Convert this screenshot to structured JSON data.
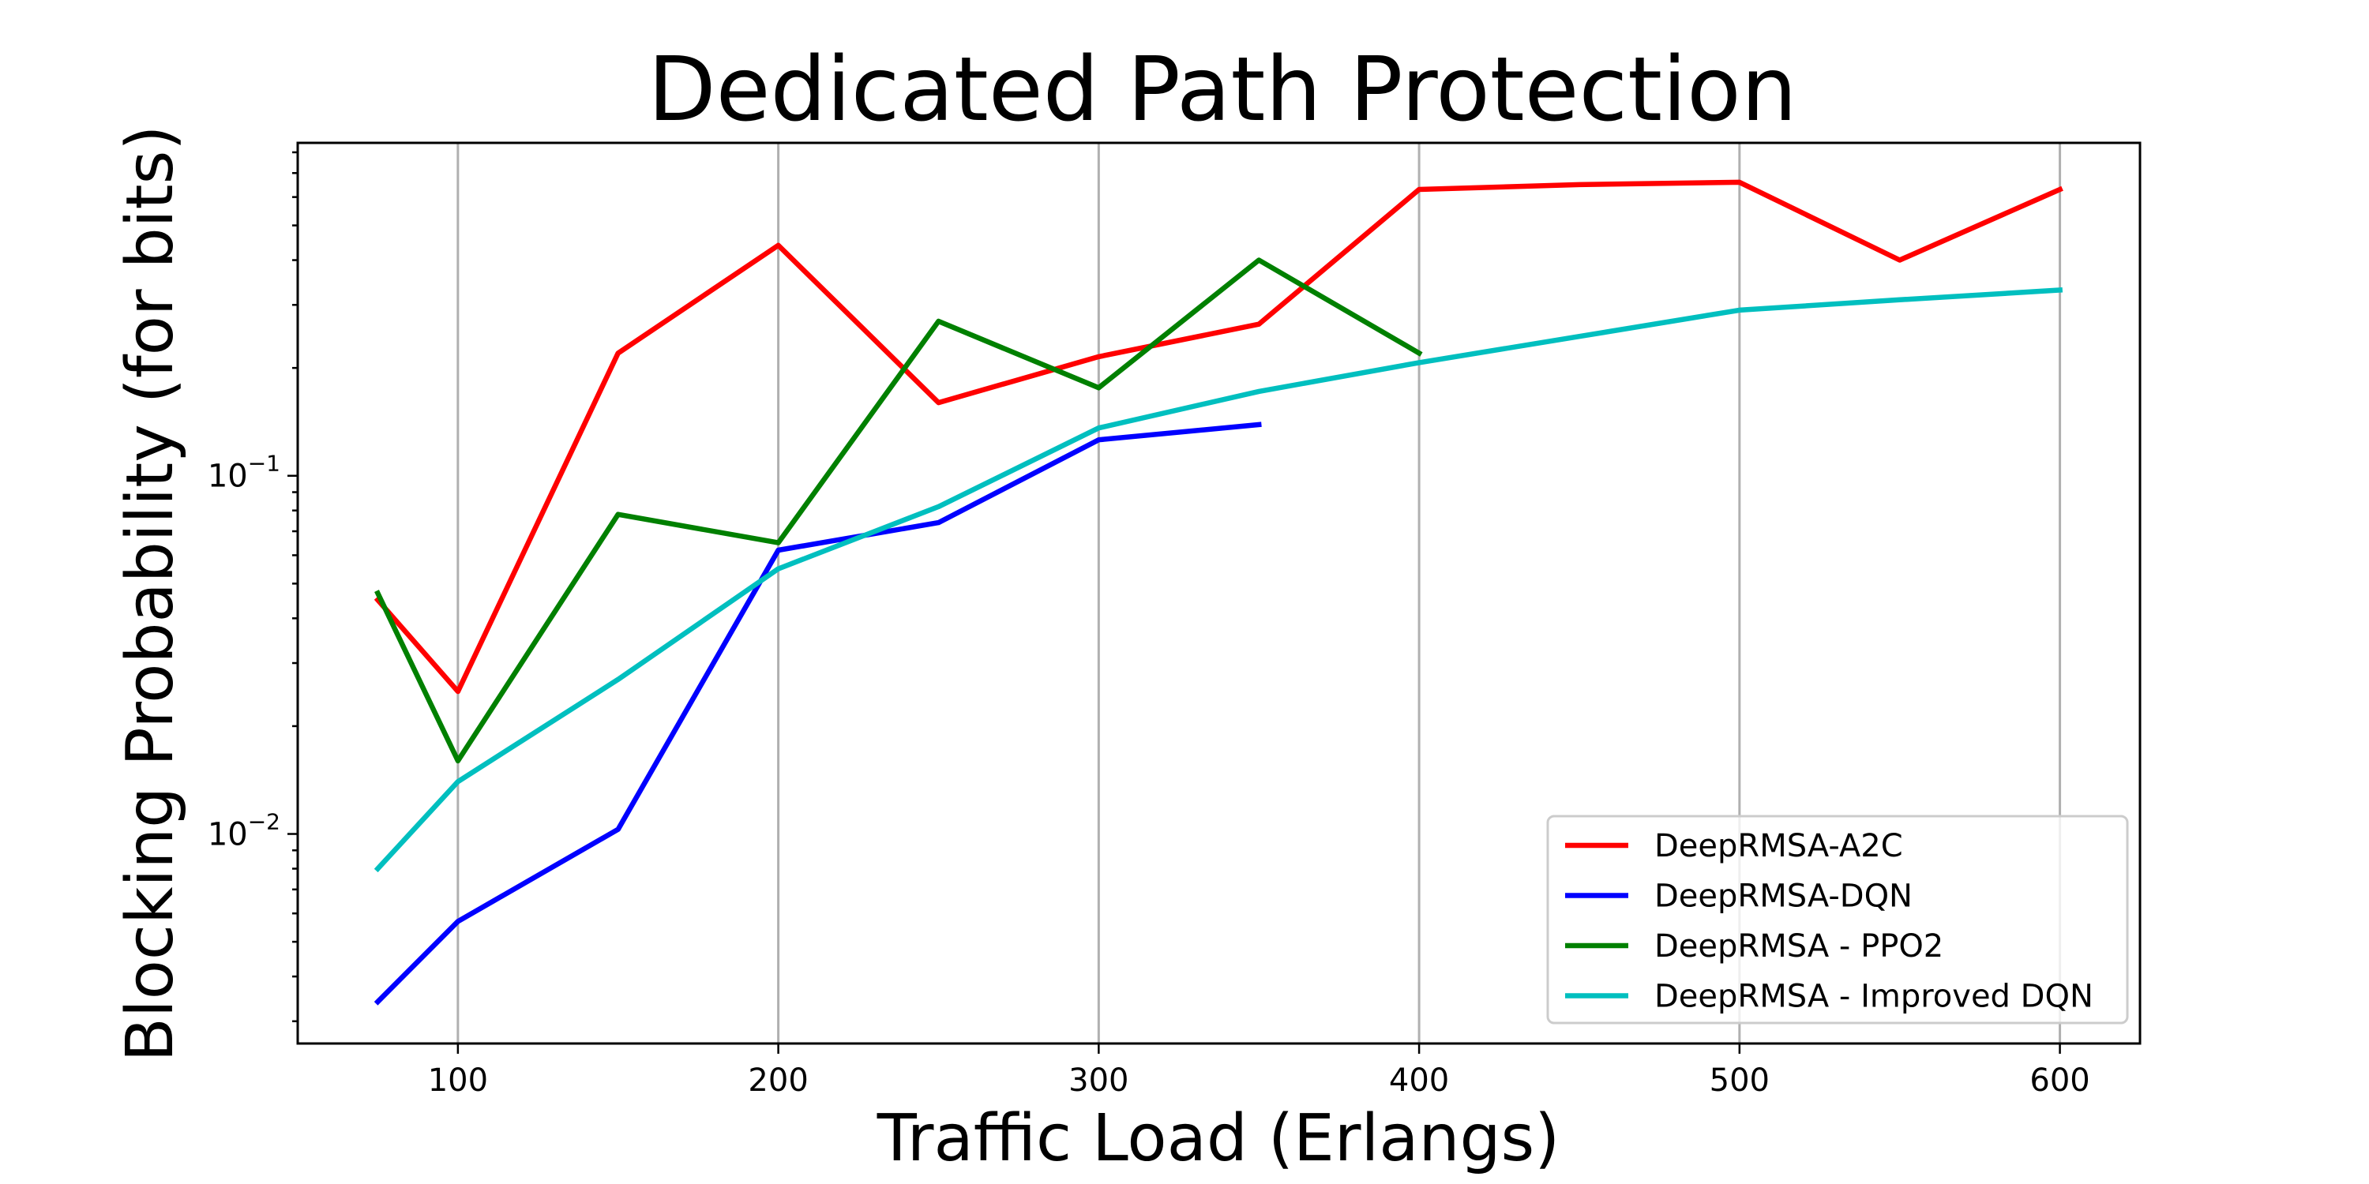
{
  "chart_data": {
    "type": "line",
    "title": "Dedicated Path Protection",
    "xlabel": "Traffic Load (Erlangs)",
    "ylabel": "Blocking Probability (for bits)",
    "yscale": "log",
    "xlim": [
      50,
      625
    ],
    "ylim": [
      0.0026,
      0.85
    ],
    "x_ticks": [
      100,
      200,
      300,
      400,
      500,
      600
    ],
    "x_tick_labels": [
      "100",
      "200",
      "300",
      "400",
      "500",
      "600"
    ],
    "y_ticks": [
      {
        "value": 0.1,
        "base": "10",
        "exp": "−1"
      },
      {
        "value": 0.01,
        "base": "10",
        "exp": "−2"
      }
    ],
    "grid": "vertical",
    "legend_position": "lower-right",
    "series": [
      {
        "name": "DeepRMSA-A2C",
        "color": "#ff0000",
        "x": [
          75,
          100,
          150,
          200,
          250,
          300,
          350,
          400,
          450,
          500,
          550,
          600
        ],
        "y": [
          0.045,
          0.025,
          0.22,
          0.44,
          0.16,
          0.215,
          0.265,
          0.63,
          0.65,
          0.66,
          0.4,
          0.63
        ]
      },
      {
        "name": "DeepRMSA-DQN",
        "color": "#0000ff",
        "x": [
          75,
          100,
          150,
          200,
          250,
          300,
          350
        ],
        "y": [
          0.0034,
          0.0057,
          0.0103,
          0.062,
          0.074,
          0.126,
          0.139
        ]
      },
      {
        "name": "DeepRMSA - PPO2",
        "color": "#008000",
        "x": [
          75,
          100,
          150,
          200,
          250,
          300,
          350,
          400
        ],
        "y": [
          0.047,
          0.016,
          0.078,
          0.065,
          0.27,
          0.176,
          0.4,
          0.22
        ]
      },
      {
        "name": "DeepRMSA - Improved DQN",
        "color": "#00bfbf",
        "x": [
          75,
          100,
          150,
          200,
          250,
          300,
          350,
          400,
          450,
          500,
          550,
          600
        ],
        "y": [
          0.008,
          0.014,
          0.027,
          0.055,
          0.082,
          0.136,
          0.172,
          0.207,
          0.245,
          0.29,
          0.31,
          0.33
        ]
      }
    ]
  }
}
